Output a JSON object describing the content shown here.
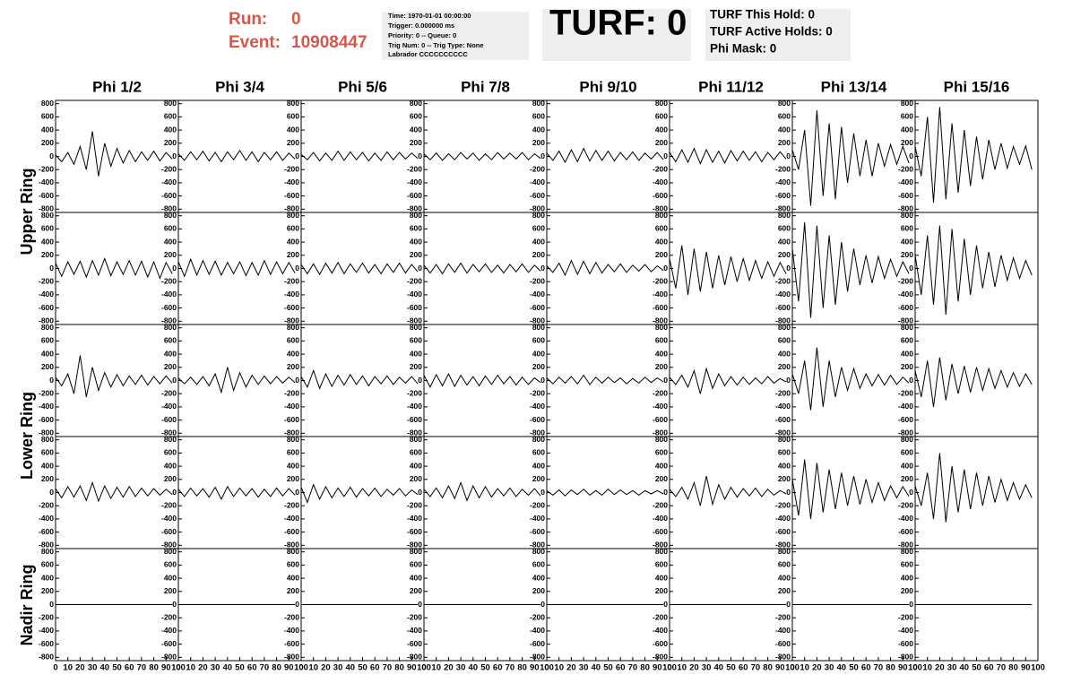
{
  "header": {
    "run_label": "Run:",
    "run": "0",
    "event_label": "Event:",
    "event": "10908447",
    "info": [
      "Time: 1970-01-01 00:00:00",
      "Trigger: 0.000000 ms",
      "Priority: 0 -- Queue: 0",
      "Trig Num: 0 -- Trig Type: None",
      "Labrador CCCCCCCCCC"
    ],
    "turf": "TURF: 0",
    "turf_info": [
      "TURF This Hold: 0",
      "TURF Active Holds: 0",
      "Phi Mask: 0"
    ]
  },
  "plots": {
    "columns": [
      "Phi 1/2",
      "Phi 3/4",
      "Phi 5/6",
      "Phi 7/8",
      "Phi 9/10",
      "Phi 11/12",
      "Phi 13/14",
      "Phi 15/16"
    ],
    "ring_labels": [
      "Upper Ring",
      "Lower Ring",
      "Nadir Ring"
    ],
    "xlim": [
      0,
      100
    ],
    "ylim": [
      -850,
      850
    ],
    "xticks": [
      0,
      10,
      20,
      30,
      40,
      50,
      60,
      70,
      80,
      90,
      100
    ],
    "yticks": [
      -800,
      -600,
      -400,
      -200,
      0,
      200,
      400,
      600,
      800
    ],
    "x": [
      0,
      5,
      10,
      15,
      20,
      25,
      30,
      35,
      40,
      45,
      50,
      55,
      60,
      65,
      70,
      75,
      80,
      85,
      90,
      95
    ],
    "waveforms": [
      [
        [
          20,
          -80,
          60,
          -120,
          150,
          -200,
          380,
          -300,
          200,
          -150,
          120,
          -100,
          90,
          -80,
          70,
          -60,
          80,
          -70,
          60,
          -40
        ],
        [
          40,
          -60,
          70,
          -50,
          80,
          -70,
          60,
          -80,
          70,
          -50,
          90,
          -60,
          70,
          -80,
          60,
          -50,
          70,
          -60,
          50,
          -40
        ],
        [
          30,
          -50,
          60,
          -70,
          50,
          -60,
          80,
          -60,
          70,
          -50,
          60,
          -70,
          50,
          -60,
          70,
          -50,
          60,
          -40,
          50,
          -30
        ],
        [
          40,
          -50,
          50,
          -60,
          40,
          -50,
          60,
          -40,
          50,
          -60,
          40,
          -50,
          60,
          -40,
          50,
          -40,
          60,
          -50,
          40,
          -30
        ],
        [
          50,
          -60,
          80,
          -90,
          100,
          -80,
          120,
          -70,
          90,
          -60,
          80,
          -70,
          60,
          -50,
          70,
          -60,
          50,
          -40,
          60,
          -50
        ],
        [
          60,
          -80,
          100,
          -90,
          120,
          -110,
          100,
          -90,
          80,
          -100,
          90,
          -70,
          80,
          -60,
          70,
          -80,
          60,
          -50,
          70,
          -40
        ],
        [
          100,
          -200,
          400,
          -750,
          700,
          -600,
          500,
          -650,
          450,
          -400,
          350,
          -300,
          250,
          -300,
          200,
          -150,
          180,
          -120,
          150,
          -100
        ],
        [
          150,
          -300,
          600,
          -700,
          750,
          -650,
          500,
          -550,
          400,
          -450,
          300,
          -350,
          250,
          -200,
          200,
          -180,
          150,
          -120,
          160,
          -200
        ]
      ],
      [
        [
          80,
          -120,
          100,
          -90,
          110,
          -130,
          120,
          -100,
          150,
          -110,
          100,
          -90,
          120,
          -100,
          110,
          -130,
          100,
          -150,
          90,
          -80
        ],
        [
          100,
          -120,
          140,
          -100,
          120,
          -90,
          110,
          -100,
          90,
          -80,
          100,
          -110,
          90,
          -100,
          120,
          -90,
          100,
          -80,
          90,
          -70
        ],
        [
          60,
          -80,
          70,
          -90,
          80,
          -70,
          90,
          -80,
          70,
          -60,
          80,
          -70,
          60,
          -80,
          70,
          -60,
          80,
          -70,
          60,
          -50
        ],
        [
          50,
          -70,
          60,
          -80,
          70,
          -60,
          80,
          -70,
          60,
          -50,
          70,
          -60,
          50,
          -70,
          60,
          -50,
          70,
          -60,
          50,
          -40
        ],
        [
          40,
          -60,
          80,
          -100,
          120,
          -90,
          110,
          -80,
          90,
          -70,
          60,
          -50,
          70,
          -60,
          50,
          -40,
          60,
          -50,
          40,
          -30
        ],
        [
          150,
          -300,
          350,
          -400,
          300,
          -350,
          250,
          -300,
          200,
          -250,
          180,
          -200,
          150,
          -180,
          120,
          -150,
          100,
          -120,
          90,
          -80
        ],
        [
          300,
          -500,
          700,
          -750,
          650,
          -600,
          500,
          -550,
          400,
          -350,
          300,
          -250,
          200,
          -220,
          180,
          -150,
          140,
          -120,
          100,
          -80
        ],
        [
          200,
          -400,
          500,
          -550,
          650,
          -700,
          600,
          -500,
          450,
          -400,
          350,
          -300,
          250,
          -280,
          200,
          -180,
          160,
          -150,
          120,
          -100
        ]
      ],
      [
        [
          50,
          -80,
          100,
          -200,
          380,
          -250,
          200,
          -150,
          120,
          -100,
          90,
          -80,
          70,
          -60,
          80,
          -70,
          60,
          -50,
          70,
          -40
        ],
        [
          40,
          -50,
          50,
          -60,
          60,
          -80,
          100,
          -180,
          200,
          -150,
          120,
          -100,
          80,
          -60,
          70,
          -50,
          60,
          -40,
          50,
          -30
        ],
        [
          60,
          -100,
          150,
          -120,
          100,
          -90,
          80,
          -70,
          90,
          -60,
          70,
          -80,
          60,
          -50,
          70,
          -60,
          50,
          -40,
          60,
          -50
        ],
        [
          80,
          -100,
          90,
          -80,
          100,
          -90,
          80,
          -70,
          60,
          -80,
          70,
          -60,
          80,
          -50,
          60,
          -70,
          50,
          -60,
          40,
          -30
        ],
        [
          40,
          -50,
          50,
          -40,
          60,
          -50,
          80,
          -60,
          50,
          -40,
          50,
          -30,
          40,
          -50,
          30,
          -40,
          50,
          -30,
          40,
          -20
        ],
        [
          50,
          -60,
          80,
          -100,
          150,
          -200,
          180,
          -120,
          100,
          -80,
          60,
          -70,
          50,
          -60,
          40,
          -50,
          60,
          -40,
          30,
          -20
        ],
        [
          100,
          -200,
          300,
          -450,
          500,
          -400,
          300,
          -250,
          200,
          -150,
          180,
          -120,
          100,
          -80,
          90,
          -70,
          80,
          -60,
          50,
          -40
        ],
        [
          150,
          -250,
          300,
          -400,
          350,
          -300,
          250,
          -200,
          220,
          -180,
          200,
          -150,
          180,
          -120,
          150,
          -100,
          120,
          -90,
          100,
          -60
        ]
      ],
      [
        [
          60,
          -80,
          90,
          -70,
          100,
          -120,
          150,
          -130,
          100,
          -90,
          80,
          -70,
          90,
          -60,
          70,
          -50,
          60,
          -40,
          50,
          -30
        ],
        [
          50,
          -60,
          70,
          -50,
          60,
          -70,
          80,
          -100,
          90,
          -60,
          70,
          -50,
          60,
          -70,
          50,
          -60,
          70,
          -50,
          60,
          -40
        ],
        [
          80,
          -150,
          120,
          -100,
          90,
          -80,
          70,
          -60,
          80,
          -70,
          60,
          -50,
          70,
          -60,
          50,
          -40,
          60,
          -50,
          40,
          -30
        ],
        [
          50,
          -60,
          70,
          -80,
          100,
          -90,
          150,
          -120,
          100,
          -80,
          90,
          -70,
          60,
          -50,
          70,
          -60,
          50,
          -40,
          60,
          -50
        ],
        [
          30,
          -40,
          40,
          -50,
          40,
          -30,
          50,
          -40,
          30,
          -40,
          50,
          -30,
          40,
          -30,
          30,
          -40,
          30,
          -20,
          30,
          -20
        ],
        [
          50,
          -60,
          80,
          -100,
          150,
          -200,
          250,
          -180,
          120,
          -100,
          80,
          -70,
          60,
          -50,
          70,
          -60,
          50,
          -40,
          30,
          -20
        ],
        [
          200,
          -350,
          500,
          -400,
          450,
          -300,
          350,
          -250,
          300,
          -200,
          250,
          -180,
          200,
          -150,
          150,
          -120,
          100,
          -80,
          90,
          -60
        ],
        [
          100,
          -200,
          300,
          -400,
          600,
          -450,
          400,
          -300,
          350,
          -250,
          300,
          -200,
          250,
          -150,
          200,
          -120,
          150,
          -100,
          120,
          -80
        ]
      ],
      [
        [
          0,
          0,
          0,
          0,
          0,
          0,
          0,
          0,
          0,
          0,
          0,
          0,
          0,
          0,
          0,
          0,
          0,
          0,
          0,
          0
        ],
        [
          0,
          0,
          0,
          0,
          0,
          0,
          0,
          0,
          0,
          0,
          0,
          0,
          0,
          0,
          0,
          0,
          0,
          0,
          0,
          0
        ],
        [
          0,
          0,
          0,
          0,
          0,
          0,
          0,
          0,
          0,
          0,
          0,
          0,
          0,
          0,
          0,
          0,
          0,
          0,
          0,
          0
        ],
        [
          0,
          0,
          0,
          0,
          0,
          0,
          0,
          0,
          0,
          0,
          0,
          0,
          0,
          0,
          0,
          0,
          0,
          0,
          0,
          0
        ],
        [
          0,
          0,
          0,
          0,
          0,
          0,
          0,
          0,
          0,
          0,
          0,
          0,
          0,
          0,
          0,
          0,
          0,
          0,
          0,
          0
        ],
        [
          0,
          0,
          0,
          0,
          0,
          0,
          0,
          0,
          0,
          0,
          0,
          0,
          0,
          0,
          0,
          0,
          0,
          0,
          0,
          0
        ],
        [
          0,
          0,
          0,
          0,
          0,
          0,
          0,
          0,
          0,
          0,
          0,
          0,
          0,
          0,
          0,
          0,
          0,
          0,
          0,
          0
        ],
        [
          0,
          0,
          0,
          0,
          0,
          0,
          0,
          0,
          0,
          0,
          0,
          0,
          0,
          0,
          0,
          0,
          0,
          0,
          0,
          0
        ]
      ]
    ]
  }
}
